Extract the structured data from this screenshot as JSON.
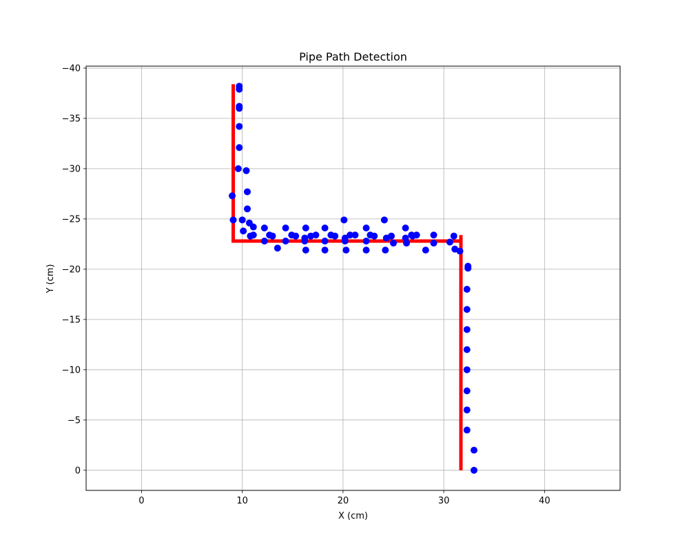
{
  "chart_data": {
    "type": "scatter",
    "title": "Pipe Path Detection",
    "xlabel": "X (cm)",
    "ylabel": "Y (cm)",
    "xlim": [
      -5.5,
      47.5
    ],
    "ylim": [
      2,
      -40.2
    ],
    "y_inverted": true,
    "x_ticks": [
      0,
      10,
      20,
      30,
      40
    ],
    "y_ticks": [
      0,
      -5,
      -10,
      -15,
      -20,
      -25,
      -30,
      -35,
      -40
    ],
    "y_tick_labels": [
      "0",
      "−5",
      "−10",
      "−15",
      "−20",
      "−25",
      "−30",
      "−35",
      "−40"
    ],
    "grid": true,
    "colors": {
      "points": "#0000ff",
      "path": "#ff0000",
      "grid": "#b0b0b0"
    },
    "series": [
      {
        "kind": "scatter",
        "points": [
          [
            33,
            0
          ],
          [
            33,
            -2
          ],
          [
            32.3,
            -4
          ],
          [
            32.3,
            -6
          ],
          [
            32.3,
            -7.9
          ],
          [
            32.3,
            -10
          ],
          [
            32.3,
            -12
          ],
          [
            32.3,
            -14
          ],
          [
            32.3,
            -16
          ],
          [
            32.3,
            -18
          ],
          [
            32.4,
            -20.1
          ],
          [
            32.4,
            -20.3
          ],
          [
            31.6,
            -21.8
          ],
          [
            31.1,
            -22
          ],
          [
            30.6,
            -22.7
          ],
          [
            31,
            -23.3
          ],
          [
            29,
            -22.6
          ],
          [
            29,
            -23.4
          ],
          [
            28.2,
            -21.9
          ],
          [
            27.3,
            -23.4
          ],
          [
            26.9,
            -23.3
          ],
          [
            26.8,
            -23.4
          ],
          [
            26.3,
            -22.6
          ],
          [
            26.2,
            -23.1
          ],
          [
            26.2,
            -24.1
          ],
          [
            25,
            -22.6
          ],
          [
            24.8,
            -23.3
          ],
          [
            24.3,
            -23.1
          ],
          [
            24.2,
            -21.9
          ],
          [
            24.1,
            -24.9
          ],
          [
            23.1,
            -23.3
          ],
          [
            22.7,
            -23.4
          ],
          [
            22.3,
            -22.8
          ],
          [
            22.3,
            -21.9
          ],
          [
            22.3,
            -24.1
          ],
          [
            21.2,
            -23.4
          ],
          [
            20.7,
            -23.4
          ],
          [
            20.3,
            -21.9
          ],
          [
            20.2,
            -23.1
          ],
          [
            20.2,
            -22.8
          ],
          [
            20.1,
            -24.9
          ],
          [
            19.2,
            -23.3
          ],
          [
            18.8,
            -23.4
          ],
          [
            18.2,
            -21.9
          ],
          [
            18.2,
            -22.8
          ],
          [
            18.2,
            -24.1
          ],
          [
            17.3,
            -23.4
          ],
          [
            16.8,
            -23.3
          ],
          [
            16.3,
            -21.9
          ],
          [
            16.2,
            -22.8
          ],
          [
            16.2,
            -23.1
          ],
          [
            16.3,
            -24.1
          ],
          [
            15.3,
            -23.3
          ],
          [
            14.9,
            -23.4
          ],
          [
            14.3,
            -22.8
          ],
          [
            14.3,
            -24.1
          ],
          [
            13.5,
            -22.1
          ],
          [
            13,
            -23.3
          ],
          [
            12.7,
            -23.4
          ],
          [
            12.2,
            -22.8
          ],
          [
            12.2,
            -24.1
          ],
          [
            11.1,
            -23.4
          ],
          [
            11.1,
            -24.2
          ],
          [
            10.8,
            -23.3
          ],
          [
            10.7,
            -24.6
          ],
          [
            10.1,
            -23.8
          ],
          [
            10,
            -24.9
          ],
          [
            9.1,
            -24.9
          ],
          [
            9,
            -27.3
          ],
          [
            10.5,
            -26
          ],
          [
            10.5,
            -27.7
          ],
          [
            10.4,
            -29.8
          ],
          [
            9.6,
            -30
          ],
          [
            9.7,
            -32.1
          ],
          [
            9.7,
            -34.2
          ],
          [
            9.7,
            -36
          ],
          [
            9.7,
            -36.2
          ],
          [
            9.7,
            -37.9
          ],
          [
            9.7,
            -38.2
          ]
        ]
      },
      {
        "kind": "line",
        "points": [
          [
            31.7,
            0
          ],
          [
            31.7,
            -22.8
          ],
          [
            31.7,
            -23.4
          ],
          [
            31.7,
            -22.8
          ],
          [
            9.1,
            -22.8
          ],
          [
            9.1,
            -38.4
          ]
        ]
      }
    ]
  }
}
